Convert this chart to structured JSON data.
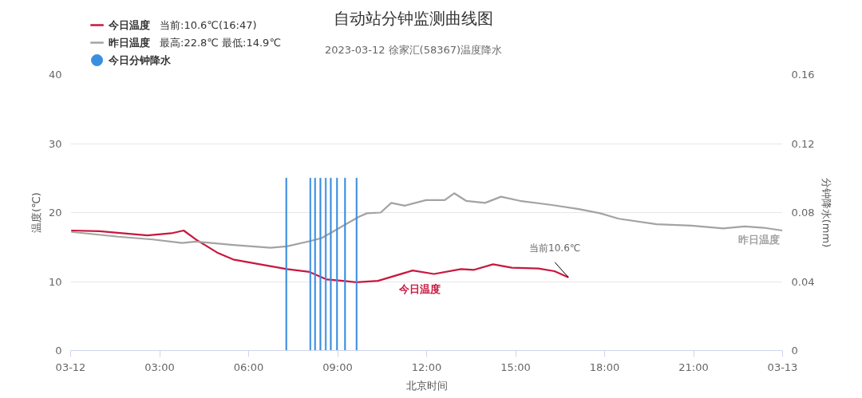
{
  "chart_data": {
    "type": "line",
    "title": "自动站分钟监测曲线图",
    "subtitle": "2023-03-12 徐家汇(58367)温度降水",
    "xlabel": "北京时间",
    "ylabel": "温度(℃)",
    "y2label": "分钟降水(mm)",
    "xlim": [
      0,
      24
    ],
    "xticks": [
      {
        "value": 0,
        "label": "03-12"
      },
      {
        "value": 3,
        "label": "03:00"
      },
      {
        "value": 6,
        "label": "06:00"
      },
      {
        "value": 9,
        "label": "09:00"
      },
      {
        "value": 12,
        "label": "12:00"
      },
      {
        "value": 15,
        "label": "15:00"
      },
      {
        "value": 18,
        "label": "18:00"
      },
      {
        "value": 21,
        "label": "21:00"
      },
      {
        "value": 24,
        "label": "03-13"
      }
    ],
    "ylim": [
      0,
      40
    ],
    "yticks": [
      0,
      10,
      20,
      30,
      40
    ],
    "y2lim": [
      0,
      0.16
    ],
    "y2ticks": [
      0,
      0.04,
      0.08,
      0.12,
      0.16
    ],
    "grid": "y",
    "legend": "top left",
    "series": [
      {
        "name": "今日温度",
        "color": "#c8173f",
        "x": [
          0.02,
          0.97,
          2.59,
          3.4,
          3.81,
          4.22,
          4.94,
          5.48,
          6.38,
          7.29,
          8.05,
          8.64,
          9.18,
          9.63,
          10.36,
          11.53,
          12.25,
          13.16,
          13.6,
          14.24,
          14.87,
          15.77,
          16.31,
          16.78
        ],
        "values": [
          17.4,
          17.3,
          16.7,
          17.0,
          17.4,
          16.1,
          14.2,
          13.2,
          12.5,
          11.8,
          11.4,
          10.3,
          10.1,
          9.9,
          10.1,
          11.6,
          11.1,
          11.8,
          11.7,
          12.5,
          12.0,
          11.9,
          11.5,
          10.6
        ]
      },
      {
        "name": "昨日温度",
        "color": "#a3a3a3",
        "x": [
          0.02,
          1.6,
          2.77,
          3.76,
          4.22,
          5.48,
          6.74,
          7.29,
          8.1,
          8.46,
          8.91,
          9.27,
          9.72,
          9.99,
          10.45,
          10.81,
          11.26,
          11.98,
          12.61,
          12.93,
          13.33,
          13.97,
          14.51,
          15.14,
          16.22,
          17.13,
          17.85,
          18.48,
          19.75,
          20.92,
          22.0,
          22.72,
          23.36,
          23.99
        ],
        "values": [
          17.2,
          16.5,
          16.1,
          15.6,
          15.8,
          15.3,
          14.9,
          15.1,
          15.9,
          16.3,
          17.4,
          18.3,
          19.4,
          19.9,
          20.0,
          21.4,
          21.0,
          21.8,
          21.8,
          22.8,
          21.7,
          21.4,
          22.3,
          21.7,
          21.1,
          20.5,
          19.9,
          19.1,
          18.3,
          18.1,
          17.7,
          18.0,
          17.8,
          17.4
        ]
      },
      {
        "name": "今日分钟降水",
        "type": "bar",
        "axis": "y2",
        "color": "#3a8ee0",
        "x": [
          7.27,
          8.08,
          8.24,
          8.42,
          8.6,
          8.77,
          8.98,
          9.25,
          9.64
        ],
        "values": [
          0.1,
          0.1,
          0.1,
          0.1,
          0.1,
          0.1,
          0.1,
          0.1,
          0.1
        ]
      }
    ],
    "annotations": [
      "当前:10.6℃(16:47)",
      "最高:22.8℃ 最低:14.9℃",
      {
        "text": "当前10.6℃",
        "x": 16.78,
        "y": 10.6
      }
    ]
  }
}
